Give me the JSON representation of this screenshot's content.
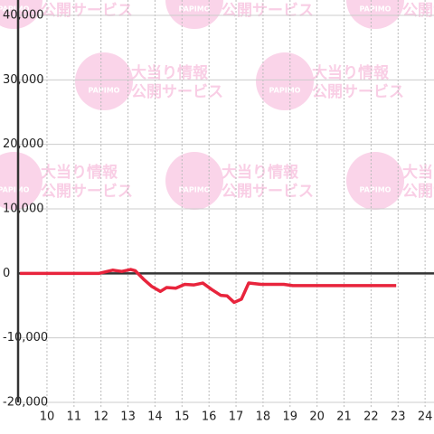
{
  "chart_data": {
    "type": "line",
    "x": [
      9,
      11.93,
      12.43,
      12.77,
      13.1,
      13.27,
      13.6,
      13.87,
      14.2,
      14.43,
      14.77,
      15.1,
      15.43,
      15.77,
      16.1,
      16.43,
      16.67,
      16.93,
      17.2,
      17.47,
      17.93,
      18.77,
      19.1,
      22.93
    ],
    "series": [
      {
        "color": "#e8243c",
        "values": [
          0,
          0,
          500,
          300,
          600,
          400,
          -1000,
          -2000,
          -2800,
          -2200,
          -2300,
          -1700,
          -1800,
          -1500,
          -2500,
          -3400,
          -3500,
          -4500,
          -4000,
          -1500,
          -1700,
          -1700,
          -1900,
          -1900
        ]
      }
    ],
    "xlim": [
      8.93,
      24.33
    ],
    "xticks": [
      10,
      11,
      12,
      13,
      14,
      15,
      16,
      17,
      18,
      19,
      20,
      21,
      22,
      23,
      24
    ],
    "ylim": [
      -20000,
      40000
    ],
    "yticks": [
      {
        "value": -20000,
        "label": "-20,000"
      },
      {
        "value": -10000,
        "label": "-10,000"
      },
      0,
      {
        "value": 10000,
        "label": "10,000"
      },
      {
        "value": 20000,
        "label": "20,000"
      },
      {
        "value": 30000,
        "label": "30,000"
      },
      {
        "value": 40000,
        "label": "40,000"
      }
    ],
    "grid": true,
    "watermark": {
      "logo": "PAPIMO",
      "line1": "大当り情報",
      "line2": "公開サービス"
    }
  }
}
